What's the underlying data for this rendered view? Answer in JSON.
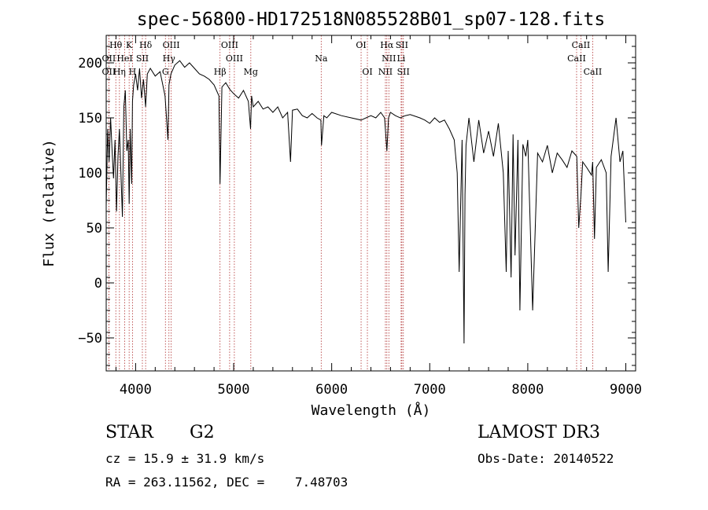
{
  "chart_data": {
    "type": "line",
    "title": "spec-56800-HD172518N085528B01_sp07-128.fits",
    "xlabel": "Wavelength (Å)",
    "ylabel": "Flux (relative)",
    "xlim": [
      3700,
      9100
    ],
    "ylim": [
      -80,
      225
    ],
    "xticks": [
      4000,
      5000,
      6000,
      7000,
      8000,
      9000
    ],
    "xtick_labels": [
      "4000",
      "5000",
      "6000",
      "7000",
      "8000",
      "9000"
    ],
    "yticks": [
      -50,
      0,
      50,
      100,
      150,
      200
    ],
    "ytick_labels": [
      "−50",
      "0",
      "50",
      "100",
      "150",
      "200"
    ],
    "series": [
      {
        "name": "spectrum",
        "x": [
          3700,
          3715,
          3730,
          3745,
          3760,
          3775,
          3790,
          3805,
          3820,
          3835,
          3850,
          3865,
          3880,
          3895,
          3910,
          3925,
          3934,
          3945,
          3960,
          3968,
          3980,
          4000,
          4020,
          4040,
          4060,
          4080,
          4102,
          4120,
          4150,
          4200,
          4250,
          4300,
          4330,
          4340,
          4360,
          4400,
          4450,
          4500,
          4550,
          4600,
          4650,
          4700,
          4750,
          4800,
          4850,
          4861,
          4880,
          4920,
          4960,
          5000,
          5050,
          5100,
          5150,
          5172,
          5183,
          5200,
          5250,
          5300,
          5350,
          5400,
          5450,
          5500,
          5550,
          5580,
          5600,
          5650,
          5700,
          5750,
          5800,
          5850,
          5890,
          5896,
          5920,
          5950,
          6000,
          6100,
          6200,
          6300,
          6400,
          6450,
          6500,
          6540,
          6563,
          6580,
          6600,
          6650,
          6700,
          6750,
          6800,
          6900,
          6950,
          7000,
          7050,
          7100,
          7150,
          7200,
          7250,
          7280,
          7300,
          7330,
          7350,
          7360,
          7370,
          7400,
          7450,
          7500,
          7550,
          7600,
          7650,
          7700,
          7750,
          7780,
          7800,
          7830,
          7850,
          7870,
          7900,
          7920,
          7950,
          7980,
          8000,
          8050,
          8100,
          8150,
          8200,
          8250,
          8300,
          8350,
          8400,
          8450,
          8500,
          8520,
          8542,
          8560,
          8600,
          8650,
          8662,
          8680,
          8700,
          8750,
          8800,
          8820,
          8850,
          8900,
          8940,
          8970,
          9000
        ],
        "values": [
          70,
          140,
          110,
          150,
          120,
          95,
          130,
          65,
          115,
          140,
          100,
          60,
          160,
          175,
          120,
          130,
          72,
          140,
          90,
          165,
          180,
          190,
          175,
          195,
          168,
          185,
          160,
          190,
          195,
          188,
          192,
          170,
          130,
          180,
          190,
          198,
          202,
          196,
          200,
          195,
          190,
          188,
          185,
          180,
          170,
          90,
          178,
          182,
          176,
          172,
          168,
          175,
          165,
          140,
          170,
          160,
          165,
          158,
          160,
          155,
          160,
          150,
          155,
          110,
          157,
          158,
          152,
          150,
          154,
          150,
          148,
          125,
          152,
          150,
          155,
          152,
          150,
          148,
          152,
          150,
          155,
          150,
          120,
          150,
          155,
          152,
          150,
          152,
          153,
          150,
          148,
          145,
          150,
          146,
          148,
          140,
          130,
          100,
          10,
          130,
          -55,
          80,
          125,
          150,
          110,
          148,
          118,
          138,
          115,
          145,
          100,
          10,
          120,
          5,
          135,
          25,
          130,
          -25,
          126,
          115,
          130,
          -25,
          118,
          110,
          125,
          100,
          118,
          112,
          105,
          120,
          115,
          50,
          80,
          110,
          105,
          98,
          110,
          40,
          105,
          112,
          100,
          10,
          115,
          150,
          110,
          120,
          55
        ]
      }
    ],
    "lines": [
      {
        "name": "Hθ",
        "x": 3798,
        "row": 1
      },
      {
        "name": "OII",
        "x": 3727,
        "row": 2
      },
      {
        "name": "OII",
        "x": 3727,
        "row": 3
      },
      {
        "name": "Hη",
        "x": 3835,
        "row": 3
      },
      {
        "name": "HeI",
        "x": 3889,
        "row": 2
      },
      {
        "name": "K",
        "x": 3934,
        "row": 1
      },
      {
        "name": "SII",
        "x": 4069,
        "row": 2
      },
      {
        "name": "H",
        "x": 3968,
        "row": 3
      },
      {
        "name": "Hδ",
        "x": 4102,
        "row": 1
      },
      {
        "name": "OIII",
        "x": 4363,
        "row": 1
      },
      {
        "name": "Hγ",
        "x": 4340,
        "row": 2
      },
      {
        "name": "G",
        "x": 4304,
        "row": 3
      },
      {
        "name": "Hβ",
        "x": 4861,
        "row": 3
      },
      {
        "name": "OIII",
        "x": 4959,
        "row": 1
      },
      {
        "name": "OIII",
        "x": 5007,
        "row": 2
      },
      {
        "name": "Mg",
        "x": 5175,
        "row": 3
      },
      {
        "name": "Na",
        "x": 5893,
        "row": 2
      },
      {
        "name": "OI",
        "x": 6300,
        "row": 1
      },
      {
        "name": "OI",
        "x": 6364,
        "row": 3
      },
      {
        "name": "Hα",
        "x": 6563,
        "row": 1
      },
      {
        "name": "NII",
        "x": 6583,
        "row": 2
      },
      {
        "name": "NII",
        "x": 6548,
        "row": 3
      },
      {
        "name": "SII",
        "x": 6716,
        "row": 1
      },
      {
        "name": "Li",
        "x": 6708,
        "row": 2
      },
      {
        "name": "SII",
        "x": 6731,
        "row": 3
      },
      {
        "name": "CaII",
        "x": 8542,
        "row": 1
      },
      {
        "name": "CaII",
        "x": 8498,
        "row": 2
      },
      {
        "name": "CaII",
        "x": 8662,
        "row": 3
      }
    ]
  },
  "info": {
    "object_class": "STAR",
    "subclass": "G2",
    "survey": "LAMOST DR3",
    "cz": "cz = 15.9 ± 31.9 km/s",
    "obs_date": "Obs-Date: 20140522",
    "coords": "RA = 263.11562, DEC =    7.48703"
  }
}
